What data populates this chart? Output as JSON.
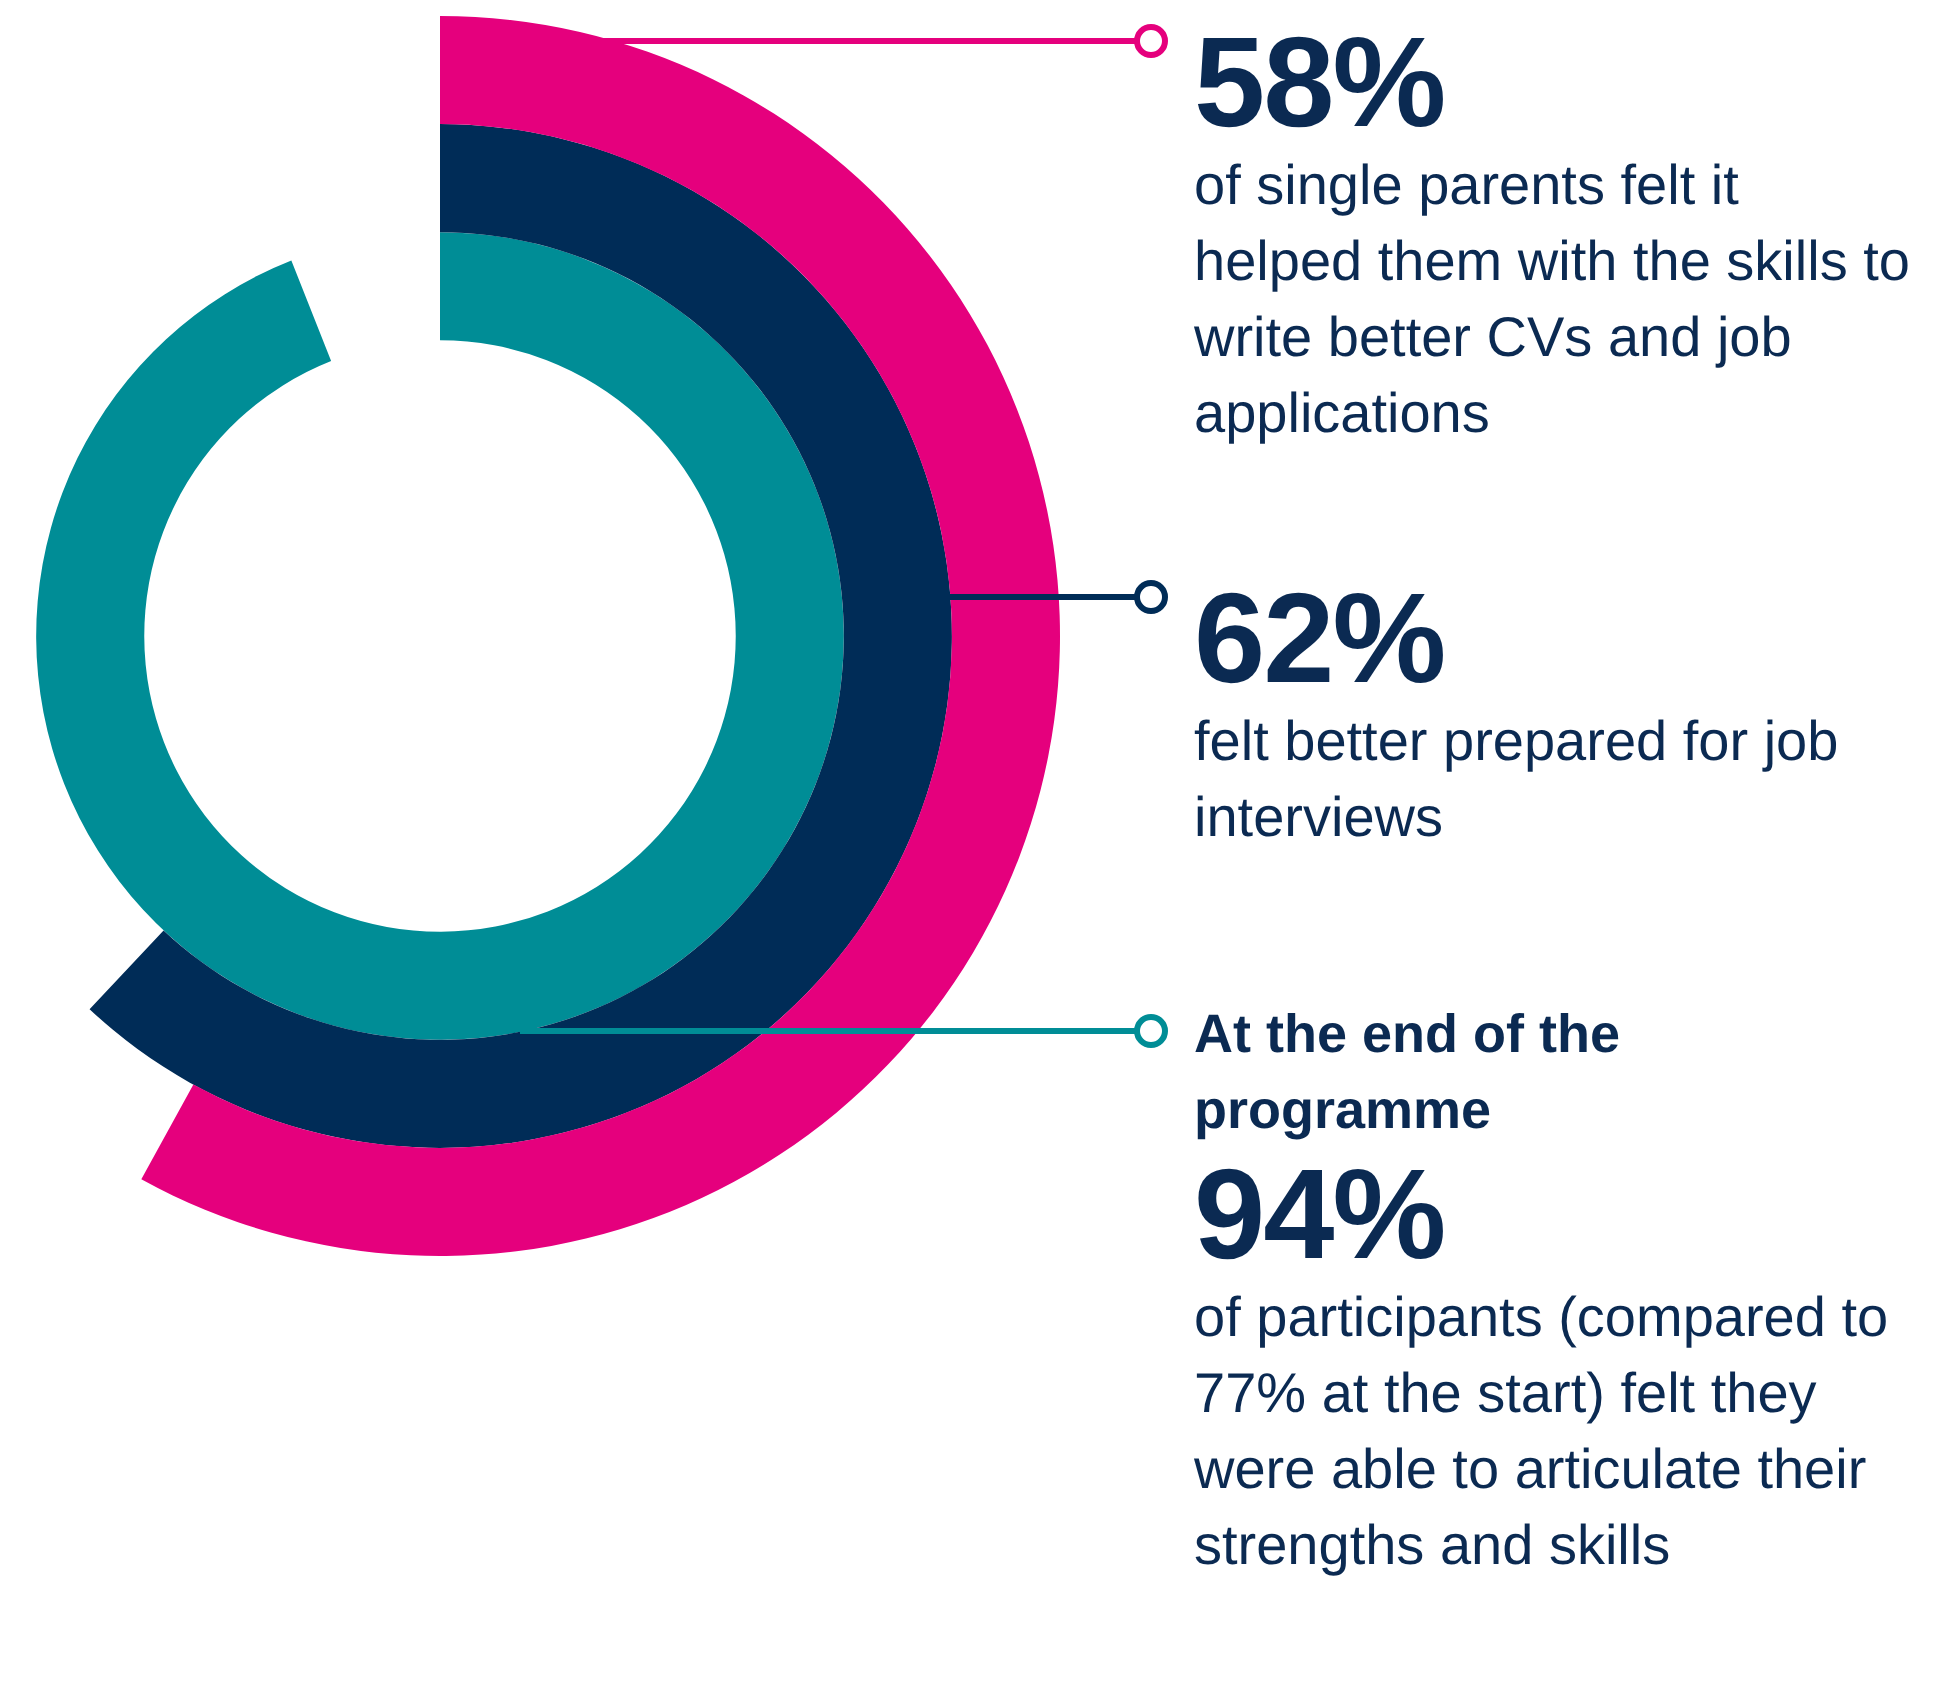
{
  "chart_data": {
    "type": "other",
    "values": [
      58,
      62,
      94
    ],
    "colors": [
      "#e5007d",
      "#002c57",
      "#008d96"
    ],
    "value_labels": [
      "58%",
      "62%",
      "94%"
    ],
    "annotations": [
      "of single parents felt it helped them with the skills to write better CVs and job applications",
      "felt better prepared for job interviews",
      "At the end of the programme",
      "of participants (compared to 77% at the start) felt they were able to articulate their strengths and skills"
    ]
  }
}
